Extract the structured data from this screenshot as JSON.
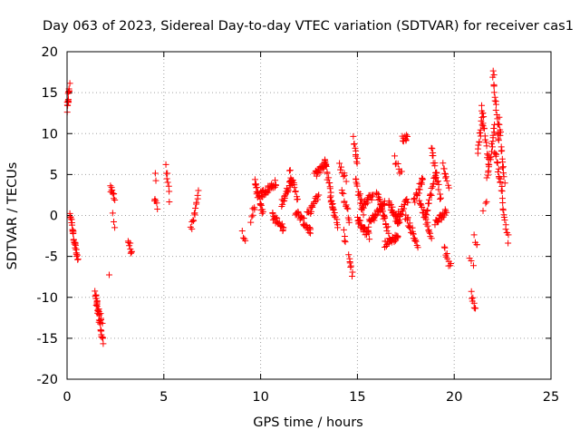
{
  "chart_data": {
    "type": "scatter",
    "title": "Day 063 of 2023, Sidereal Day-to-day VTEC variation (SDTVAR) for receiver cas1",
    "xlabel": "GPS time / hours",
    "ylabel": "SDTVAR / TECUs",
    "xlim": [
      0,
      25
    ],
    "ylim": [
      -20,
      20
    ],
    "xticks": [
      0,
      5,
      10,
      15,
      20,
      25
    ],
    "yticks": [
      -20,
      -15,
      -10,
      -5,
      0,
      5,
      10,
      15,
      20
    ],
    "grid": true,
    "marker": "+",
    "color": "#ff0000",
    "series": [
      {
        "name": "SDTVAR",
        "segments": [
          {
            "x0": 0.0,
            "x1": 0.12,
            "y0": 12.8,
            "y1": 15.8,
            "n": 14
          },
          {
            "x0": 0.15,
            "x1": 0.55,
            "y0": 0.3,
            "y1": -5.5,
            "n": 32
          },
          {
            "x0": 1.45,
            "x1": 1.85,
            "y0": -9.5,
            "y1": -15.5,
            "n": 30
          },
          {
            "x0": 1.55,
            "x1": 1.8,
            "y0": -10.5,
            "y1": -13.0,
            "n": 10
          },
          {
            "x0": 2.2,
            "x1": 2.2,
            "y0": -7.6,
            "y1": -7.6,
            "n": 1
          },
          {
            "x0": 2.25,
            "x1": 2.45,
            "y0": 3.2,
            "y1": 2.3,
            "n": 10
          },
          {
            "x0": 2.38,
            "x1": 2.45,
            "y0": 0.3,
            "y1": -1.6,
            "n": 3
          },
          {
            "x0": 3.15,
            "x1": 3.35,
            "y0": -3.0,
            "y1": -4.8,
            "n": 8
          },
          {
            "x0": 4.5,
            "x1": 4.65,
            "y0": 2.2,
            "y1": 0.8,
            "n": 6
          },
          {
            "x0": 4.55,
            "x1": 4.6,
            "y0": 4.8,
            "y1": 4.0,
            "n": 2
          },
          {
            "x0": 5.1,
            "x1": 5.3,
            "y0": 6.1,
            "y1": 2.0,
            "n": 8
          },
          {
            "x0": 6.4,
            "x1": 6.8,
            "y0": -1.8,
            "y1": 2.8,
            "n": 14
          },
          {
            "x0": 9.05,
            "x1": 9.2,
            "y0": -2.0,
            "y1": -3.2,
            "n": 4
          },
          {
            "x0": 9.5,
            "x1": 9.7,
            "y0": -0.5,
            "y1": 1.0,
            "n": 6
          },
          {
            "x0": 9.7,
            "x1": 10.1,
            "y0": 4.0,
            "y1": 0.5,
            "n": 24
          },
          {
            "x0": 10.0,
            "x1": 10.8,
            "y0": 2.5,
            "y1": 4.0,
            "n": 30
          },
          {
            "x0": 10.6,
            "x1": 11.2,
            "y0": 0.0,
            "y1": -1.8,
            "n": 22
          },
          {
            "x0": 11.1,
            "x1": 11.6,
            "y0": 1.5,
            "y1": 4.5,
            "n": 22
          },
          {
            "x0": 11.5,
            "x1": 11.9,
            "y0": 5.5,
            "y1": 2.0,
            "n": 16
          },
          {
            "x0": 11.8,
            "x1": 12.6,
            "y0": 0.5,
            "y1": -2.0,
            "n": 30
          },
          {
            "x0": 12.4,
            "x1": 13.0,
            "y0": 0.0,
            "y1": 2.5,
            "n": 20
          },
          {
            "x0": 12.8,
            "x1": 13.4,
            "y0": 5.0,
            "y1": 6.5,
            "n": 24
          },
          {
            "x0": 13.3,
            "x1": 13.8,
            "y0": 7.0,
            "y1": 0.0,
            "n": 20
          },
          {
            "x0": 13.6,
            "x1": 14.0,
            "y0": 2.5,
            "y1": -1.5,
            "n": 14
          },
          {
            "x0": 14.1,
            "x1": 14.4,
            "y0": 6.0,
            "y1": 4.5,
            "n": 8
          },
          {
            "x0": 14.2,
            "x1": 14.6,
            "y0": 3.0,
            "y1": -0.5,
            "n": 12
          },
          {
            "x0": 14.3,
            "x1": 14.4,
            "y0": -1.5,
            "y1": -3.3,
            "n": 4
          },
          {
            "x0": 14.55,
            "x1": 14.75,
            "y0": -5.0,
            "y1": -7.0,
            "n": 8
          },
          {
            "x0": 14.8,
            "x1": 15.0,
            "y0": 9.3,
            "y1": 6.3,
            "n": 10
          },
          {
            "x0": 14.9,
            "x1": 15.3,
            "y0": 4.5,
            "y1": 0.5,
            "n": 16
          },
          {
            "x0": 15.0,
            "x1": 15.6,
            "y0": -0.5,
            "y1": -2.5,
            "n": 26
          },
          {
            "x0": 15.2,
            "x1": 15.8,
            "y0": 1.0,
            "y1": 2.5,
            "n": 20
          },
          {
            "x0": 15.6,
            "x1": 16.4,
            "y0": -1.0,
            "y1": 1.5,
            "n": 32
          },
          {
            "x0": 16.0,
            "x1": 16.6,
            "y0": 3.0,
            "y1": -2.0,
            "n": 24
          },
          {
            "x0": 16.4,
            "x1": 17.1,
            "y0": -3.5,
            "y1": -2.5,
            "n": 26
          },
          {
            "x0": 16.6,
            "x1": 17.2,
            "y0": 1.5,
            "y1": -1.0,
            "n": 24
          },
          {
            "x0": 16.9,
            "x1": 17.3,
            "y0": 7.0,
            "y1": 5.0,
            "n": 8
          },
          {
            "x0": 17.0,
            "x1": 17.6,
            "y0": -0.5,
            "y1": 2.0,
            "n": 22
          },
          {
            "x0": 17.3,
            "x1": 17.6,
            "y0": 9.3,
            "y1": 9.6,
            "n": 10
          },
          {
            "x0": 17.5,
            "x1": 18.1,
            "y0": 0.0,
            "y1": -3.5,
            "n": 22
          },
          {
            "x0": 17.9,
            "x1": 18.4,
            "y0": 1.5,
            "y1": 4.5,
            "n": 18
          },
          {
            "x0": 18.2,
            "x1": 18.8,
            "y0": 2.0,
            "y1": -2.5,
            "n": 22
          },
          {
            "x0": 18.5,
            "x1": 19.1,
            "y0": 0.0,
            "y1": 5.5,
            "n": 22
          },
          {
            "x0": 18.8,
            "x1": 19.3,
            "y0": 8.5,
            "y1": 2.0,
            "n": 18
          },
          {
            "x0": 19.0,
            "x1": 19.6,
            "y0": -1.0,
            "y1": 0.5,
            "n": 22
          },
          {
            "x0": 19.4,
            "x1": 19.7,
            "y0": 6.5,
            "y1": 3.5,
            "n": 10
          },
          {
            "x0": 19.5,
            "x1": 19.8,
            "y0": -4.0,
            "y1": -6.2,
            "n": 10
          },
          {
            "x0": 20.8,
            "x1": 21.0,
            "y0": -5.5,
            "y1": -6.0,
            "n": 3
          },
          {
            "x0": 20.9,
            "x1": 21.1,
            "y0": -9.5,
            "y1": -11.5,
            "n": 8
          },
          {
            "x0": 21.05,
            "x1": 21.2,
            "y0": -2.7,
            "y1": -3.8,
            "n": 4
          },
          {
            "x0": 21.2,
            "x1": 21.5,
            "y0": 8.0,
            "y1": 12.5,
            "n": 14
          },
          {
            "x0": 21.4,
            "x1": 21.8,
            "y0": 13.0,
            "y1": 6.0,
            "n": 16
          },
          {
            "x0": 21.5,
            "x1": 21.7,
            "y0": 1.0,
            "y1": 1.5,
            "n": 3
          },
          {
            "x0": 21.7,
            "x1": 22.1,
            "y0": 4.5,
            "y1": 11.0,
            "n": 18
          },
          {
            "x0": 22.0,
            "x1": 22.3,
            "y0": 17.8,
            "y1": 9.0,
            "n": 20
          },
          {
            "x0": 22.1,
            "x1": 22.5,
            "y0": 8.0,
            "y1": 2.5,
            "n": 18
          },
          {
            "x0": 22.3,
            "x1": 22.6,
            "y0": 12.0,
            "y1": 4.0,
            "n": 16
          },
          {
            "x0": 22.5,
            "x1": 22.8,
            "y0": 1.5,
            "y1": -3.2,
            "n": 12
          }
        ]
      }
    ]
  }
}
